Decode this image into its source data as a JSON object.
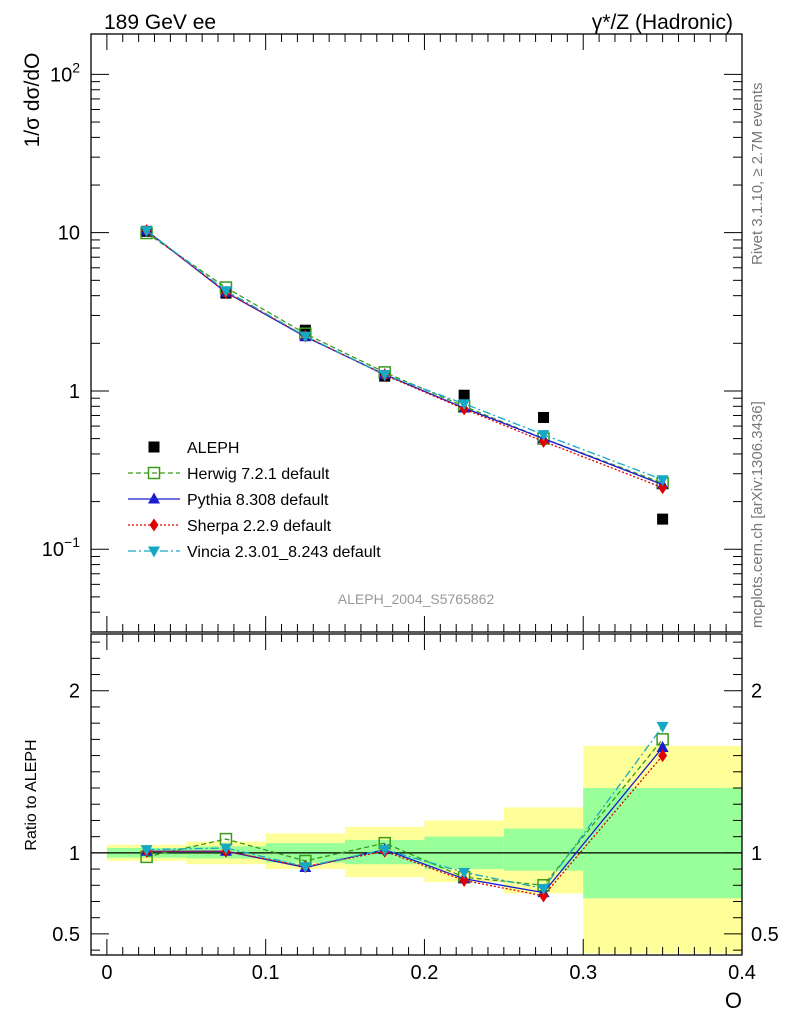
{
  "header": {
    "left": "189 GeV ee",
    "right": "γ*/Z (Hadronic)"
  },
  "side_labels": {
    "rivet": "Rivet 3.1.10, ≥ 2.7M events",
    "mcplots": "mcplots.cern.ch [arXiv:1306.3436]"
  },
  "analysis_id": "ALEPH_2004_S5765862",
  "colors": {
    "ALEPH": "#000000",
    "Herwig": "#3a9a1a",
    "Pythia": "#1a1ad0",
    "Sherpa": "#e00000",
    "Vincia": "#16a8c4",
    "band_inner": "#99ff99",
    "band_outer": "#ffff99"
  },
  "chart_data": [
    {
      "type": "scatter",
      "panel": "main",
      "ylabel": "1/σ dσ/dO",
      "yscale": "log",
      "ylim": [
        0.03,
        180
      ],
      "xlim": [
        -0.01,
        0.4
      ],
      "ytick_labels": [
        "10^-1",
        "1",
        "10",
        "10^2"
      ],
      "legend_position": "lower-left",
      "x": [
        0.025,
        0.075,
        0.125,
        0.175,
        0.225,
        0.275,
        0.35
      ],
      "series": [
        {
          "name": "ALEPH",
          "values": [
            10.2,
            4.15,
            2.42,
            1.24,
            0.94,
            0.68,
            0.155
          ]
        },
        {
          "name": "Herwig 7.2.1 default",
          "values": [
            9.95,
            4.5,
            2.3,
            1.31,
            0.8,
            0.5,
            0.262
          ]
        },
        {
          "name": "Pythia 8.308 default",
          "values": [
            10.3,
            4.2,
            2.2,
            1.27,
            0.78,
            0.5,
            0.256
          ]
        },
        {
          "name": "Sherpa 2.2.9 default",
          "values": [
            10.3,
            4.2,
            2.22,
            1.26,
            0.77,
            0.48,
            0.245
          ]
        },
        {
          "name": "Vincia 2.3.01_8.243 default",
          "values": [
            10.3,
            4.3,
            2.22,
            1.27,
            0.83,
            0.53,
            0.275
          ]
        }
      ]
    },
    {
      "type": "line",
      "panel": "ratio",
      "ylabel": "Ratio to ALEPH",
      "xlabel": "O",
      "ylim": [
        0.37,
        2.35
      ],
      "xlim": [
        -0.01,
        0.4
      ],
      "xtick_labels": [
        "0",
        "0.1",
        "0.2",
        "0.3",
        "0.4"
      ],
      "ytick_labels": [
        "0.5",
        "1",
        "2"
      ],
      "x": [
        0.025,
        0.075,
        0.125,
        0.175,
        0.225,
        0.275,
        0.35
      ],
      "bins": [
        [
          0.0,
          0.05
        ],
        [
          0.05,
          0.1
        ],
        [
          0.1,
          0.15
        ],
        [
          0.15,
          0.2
        ],
        [
          0.2,
          0.25
        ],
        [
          0.25,
          0.3
        ],
        [
          0.3,
          0.4
        ]
      ],
      "band_inner": [
        [
          0.97,
          1.03
        ],
        [
          0.965,
          1.04
        ],
        [
          0.94,
          1.06
        ],
        [
          0.93,
          1.08
        ],
        [
          0.9,
          1.1
        ],
        [
          0.89,
          1.15
        ],
        [
          0.72,
          1.4
        ]
      ],
      "band_outer": [
        [
          0.95,
          1.05
        ],
        [
          0.93,
          1.07
        ],
        [
          0.9,
          1.12
        ],
        [
          0.85,
          1.16
        ],
        [
          0.82,
          1.2
        ],
        [
          0.75,
          1.28
        ],
        [
          0.38,
          1.66
        ]
      ],
      "series": [
        {
          "name": "Herwig 7.2.1 default",
          "values": [
            0.975,
            1.085,
            0.95,
            1.06,
            0.85,
            0.8,
            1.7
          ]
        },
        {
          "name": "Pythia 8.308 default",
          "values": [
            1.01,
            1.01,
            0.91,
            1.02,
            0.84,
            0.755,
            1.65
          ]
        },
        {
          "name": "Sherpa 2.2.9 default",
          "values": [
            1.01,
            1.01,
            0.915,
            1.01,
            0.83,
            0.735,
            1.6
          ]
        },
        {
          "name": "Vincia 2.3.01_8.243 default",
          "values": [
            1.02,
            1.03,
            0.915,
            1.02,
            0.88,
            0.78,
            1.78
          ]
        }
      ]
    }
  ]
}
